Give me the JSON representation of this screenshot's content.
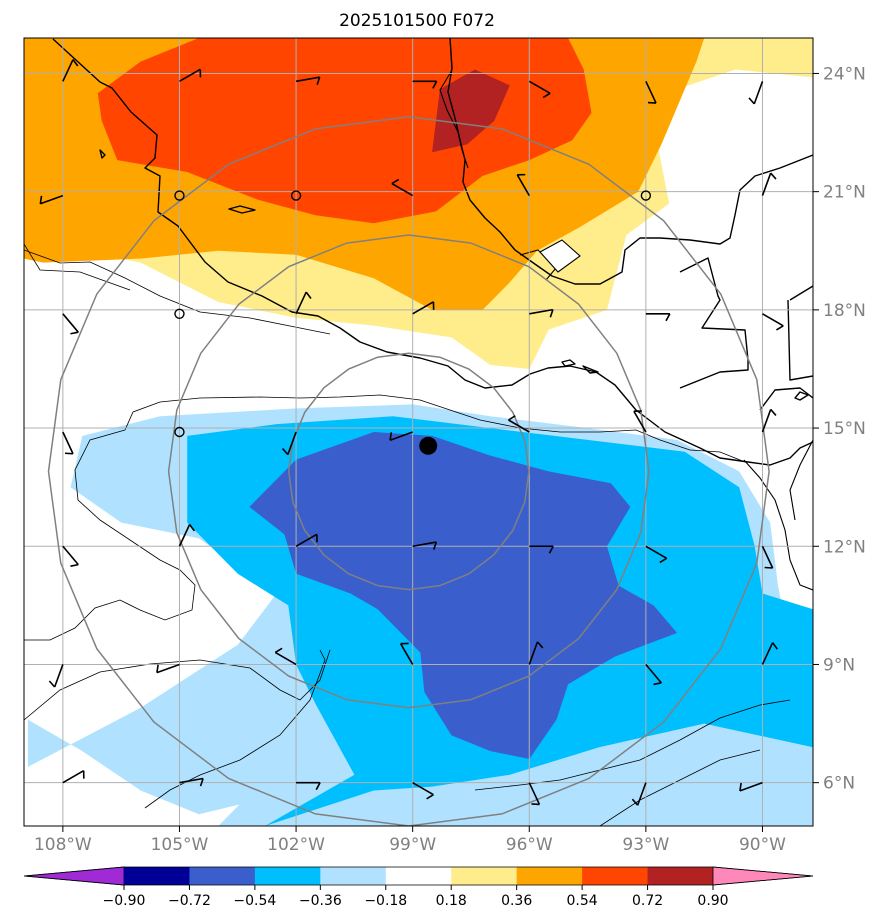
{
  "title": "2025101500 F072",
  "colors": {
    "land_outline": "#000000",
    "grid": "#b0b0b0",
    "range_rings": "#808080",
    "barbs": "#000000",
    "storm_center": "#000000"
  },
  "map": {
    "lon_range": [
      -109,
      -88.7
    ],
    "lat_range": [
      4.9,
      24.9
    ],
    "lon_ticks": [
      {
        "value": -108,
        "label": "108°W"
      },
      {
        "value": -105,
        "label": "105°W"
      },
      {
        "value": -102,
        "label": "102°W"
      },
      {
        "value": -99,
        "label": "99°W"
      },
      {
        "value": -96,
        "label": "96°W"
      },
      {
        "value": -93,
        "label": "93°W"
      },
      {
        "value": -90,
        "label": "90°W"
      }
    ],
    "lat_ticks": [
      {
        "value": 6,
        "label": "6°N"
      },
      {
        "value": 9,
        "label": "9°N"
      },
      {
        "value": 12,
        "label": "12°N"
      },
      {
        "value": 15,
        "label": "15°N"
      },
      {
        "value": 18,
        "label": "18°N"
      },
      {
        "value": 21,
        "label": "21°N"
      },
      {
        "value": 24,
        "label": "24°N"
      }
    ],
    "storm_center": {
      "lon": -98.6,
      "lat": 14.55
    },
    "range_ring_center": {
      "lon": -99.1,
      "lat": 13.9
    },
    "range_rings_deg": [
      3,
      6,
      9
    ]
  },
  "colorbar": {
    "bounds": [
      -0.9,
      -0.72,
      -0.54,
      -0.36,
      -0.18,
      0.18,
      0.36,
      0.54,
      0.72,
      0.9
    ],
    "tick_labels": [
      "−0.90",
      "−0.72",
      "−0.54",
      "−0.36",
      "−0.18",
      "0.18",
      "0.36",
      "0.54",
      "0.72",
      "0.90"
    ],
    "colors": [
      "#a02bd6",
      "#000096",
      "#3a5fcd",
      "#00bfff",
      "#b0e2ff",
      "#ffffff",
      "#ffec8b",
      "#ffa500",
      "#ff4500",
      "#b22222",
      "#ff88bb"
    ]
  },
  "field_contours": [
    {
      "level": "-0.36",
      "color": "#b0e2ff",
      "points": [
        [
          -108.9,
          6.4
        ],
        [
          -106,
          7.9
        ],
        [
          -103.5,
          9.5
        ],
        [
          -102.5,
          10.8
        ],
        [
          -104.5,
          12.2
        ],
        [
          -106.5,
          12.6
        ],
        [
          -107.8,
          13.5
        ],
        [
          -107.5,
          14.8
        ],
        [
          -105.5,
          15.3
        ],
        [
          -102,
          15.5
        ],
        [
          -99,
          15.6
        ],
        [
          -97,
          15.3
        ],
        [
          -94.5,
          15.0
        ],
        [
          -92.2,
          14.7
        ],
        [
          -90.6,
          13.9
        ],
        [
          -89.8,
          12.6
        ],
        [
          -89.6,
          11.0
        ],
        [
          -89.4,
          10.0
        ],
        [
          -88.7,
          9.8
        ],
        [
          -88.7,
          4.9
        ],
        [
          -104,
          4.9
        ],
        [
          -102.5,
          6.4
        ],
        [
          -101.5,
          7.6
        ],
        [
          -100.5,
          8.0
        ],
        [
          -99.5,
          7.7
        ],
        [
          -101,
          6.7
        ],
        [
          -102.8,
          5.6
        ],
        [
          -104.5,
          5.2
        ],
        [
          -106,
          5.8
        ],
        [
          -107.5,
          6.8
        ],
        [
          -108.9,
          7.6
        ]
      ]
    },
    {
      "level": "-0.54",
      "color": "#00bfff",
      "points": [
        [
          -104.8,
          12.6
        ],
        [
          -104.8,
          14.8
        ],
        [
          -102.5,
          15.1
        ],
        [
          -99.5,
          15.3
        ],
        [
          -97,
          15.0
        ],
        [
          -94.5,
          14.7
        ],
        [
          -92,
          14.4
        ],
        [
          -90.6,
          13.5
        ],
        [
          -90.2,
          12.0
        ],
        [
          -90.0,
          10.8
        ],
        [
          -88.7,
          10.4
        ],
        [
          -88.7,
          6.9
        ],
        [
          -91.5,
          7.5
        ],
        [
          -94.2,
          6.9
        ],
        [
          -96.5,
          6.2
        ],
        [
          -98.5,
          5.9
        ],
        [
          -100,
          5.8
        ],
        [
          -102.8,
          4.9
        ],
        [
          -102.8,
          4.9
        ],
        [
          -100.5,
          6.2
        ],
        [
          -101.5,
          8.0
        ],
        [
          -102,
          9.0
        ],
        [
          -102.2,
          10.5
        ],
        [
          -103.5,
          11.3
        ],
        [
          -104.8,
          12.6
        ]
      ]
    },
    {
      "level": "-0.72",
      "color": "#3a5fcd",
      "points": [
        [
          -103.2,
          13.0
        ],
        [
          -102,
          14.2
        ],
        [
          -100,
          14.9
        ],
        [
          -98.5,
          14.8
        ],
        [
          -97,
          14.3
        ],
        [
          -95.5,
          13.9
        ],
        [
          -93.9,
          13.6
        ],
        [
          -93.4,
          13.0
        ],
        [
          -94.0,
          12.0
        ],
        [
          -93.7,
          11.0
        ],
        [
          -92.8,
          10.5
        ],
        [
          -92.2,
          9.8
        ],
        [
          -93.8,
          9.2
        ],
        [
          -95.0,
          8.5
        ],
        [
          -95.3,
          7.6
        ],
        [
          -96,
          6.6
        ],
        [
          -97,
          6.8
        ],
        [
          -98,
          7.2
        ],
        [
          -98.7,
          8.3
        ],
        [
          -98.8,
          9.3
        ],
        [
          -99.9,
          10.4
        ],
        [
          -100.6,
          10.8
        ],
        [
          -102,
          11.3
        ],
        [
          -102.3,
          12.3
        ],
        [
          -103.2,
          13.0
        ]
      ]
    },
    {
      "level": "0.18",
      "color": "#ffec8b",
      "points": [
        [
          -109,
          24.9
        ],
        [
          -88.7,
          24.9
        ],
        [
          -88.7,
          23.9
        ],
        [
          -90.7,
          24.1
        ],
        [
          -92.2,
          23.6
        ],
        [
          -92.7,
          22.2
        ],
        [
          -92.4,
          20.7
        ],
        [
          -93.5,
          19.9
        ],
        [
          -94.0,
          18.0
        ],
        [
          -95.5,
          17.5
        ],
        [
          -96,
          16.5
        ],
        [
          -97,
          16.6
        ],
        [
          -98,
          17.3
        ],
        [
          -100,
          17.6
        ],
        [
          -102,
          17.8
        ],
        [
          -104,
          18.2
        ],
        [
          -106,
          19.2
        ],
        [
          -108,
          19.6
        ],
        [
          -109,
          19.4
        ]
      ]
    },
    {
      "level": "0.36",
      "color": "#ffa500",
      "points": [
        [
          -109,
          24.9
        ],
        [
          -91.5,
          24.9
        ],
        [
          -91.7,
          24.3
        ],
        [
          -92.6,
          22.2
        ],
        [
          -93.2,
          21.0
        ],
        [
          -94.7,
          20.1
        ],
        [
          -95.8,
          19.5
        ],
        [
          -96.5,
          18.7
        ],
        [
          -97.2,
          18.0
        ],
        [
          -98.5,
          18.0
        ],
        [
          -100,
          18.8
        ],
        [
          -102,
          19.4
        ],
        [
          -104,
          19.5
        ],
        [
          -106,
          19.3
        ],
        [
          -108.5,
          19.2
        ],
        [
          -109,
          19.3
        ]
      ]
    },
    {
      "level": "0.54",
      "color": "#ff4500",
      "points": [
        [
          -107.1,
          23.5
        ],
        [
          -106,
          24.3
        ],
        [
          -104.5,
          24.9
        ],
        [
          -95.0,
          24.9
        ],
        [
          -94.6,
          24.1
        ],
        [
          -94.4,
          23.0
        ],
        [
          -94.9,
          22.3
        ],
        [
          -96.0,
          21.8
        ],
        [
          -97.2,
          21.4
        ],
        [
          -98.4,
          20.5
        ],
        [
          -100.0,
          20.2
        ],
        [
          -101.5,
          20.4
        ],
        [
          -103.0,
          20.8
        ],
        [
          -104.8,
          21.5
        ],
        [
          -106.0,
          21.7
        ],
        [
          -106.6,
          21.8
        ],
        [
          -107.0,
          22.8
        ]
      ]
    },
    {
      "level": "0.72",
      "color": "#b22222",
      "points": [
        [
          -98.3,
          23.6
        ],
        [
          -97.4,
          24.1
        ],
        [
          -96.5,
          23.7
        ],
        [
          -96.9,
          22.8
        ],
        [
          -97.6,
          22.2
        ],
        [
          -98.5,
          22.0
        ],
        [
          -98.3,
          23.6
        ]
      ]
    }
  ],
  "wind_barbs_note": "black wind barbs plotted on lat/lon grid; open circles mark calm points"
}
